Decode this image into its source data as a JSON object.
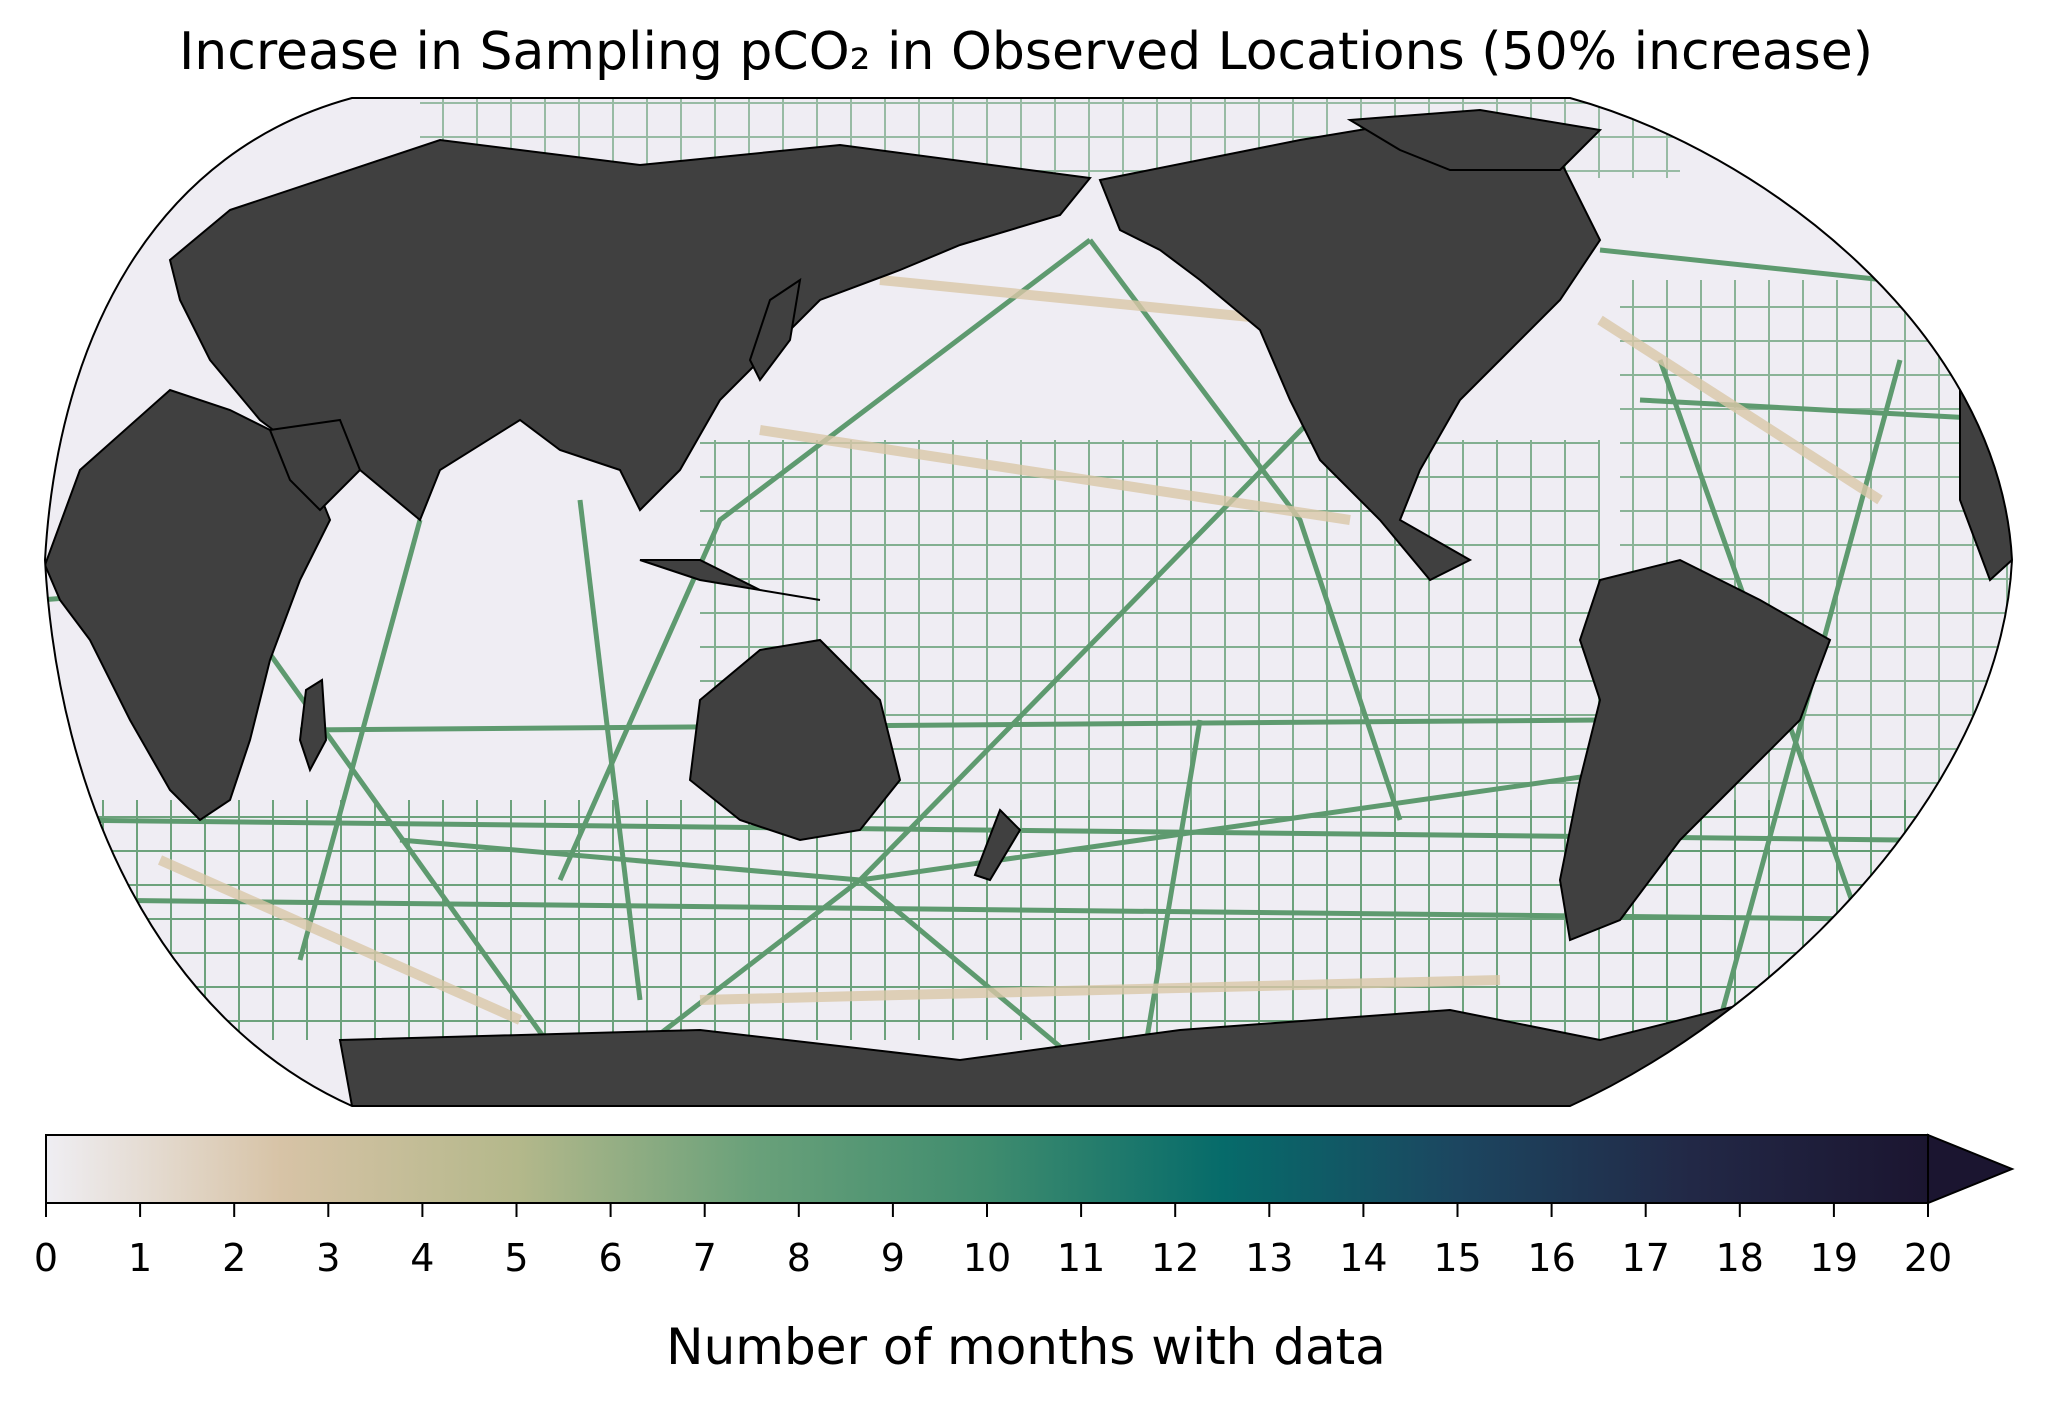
{
  "title": "Increase in Sampling pCO₂ in Observed Locations (50% increase)",
  "map": {
    "projection": "Robinson, Pacific-centered",
    "land_color": "#404040",
    "ocean_background_color": "#efedf3",
    "track_color": "#5e9a6f",
    "light_track_color": "#d9c7a8"
  },
  "colorbar": {
    "label": "Number of months with data",
    "min": 0,
    "max": 20,
    "extend": "max",
    "ticks": [
      "0",
      "1",
      "2",
      "3",
      "4",
      "5",
      "6",
      "7",
      "8",
      "9",
      "10",
      "11",
      "12",
      "13",
      "14",
      "15",
      "16",
      "17",
      "18",
      "19",
      "20"
    ],
    "colors": [
      "#efeef3",
      "#d7c3a6",
      "#b4b88b",
      "#6aa17a",
      "#3f8c6e",
      "#066b6a",
      "#1c4660",
      "#222846",
      "#1b1530"
    ]
  }
}
